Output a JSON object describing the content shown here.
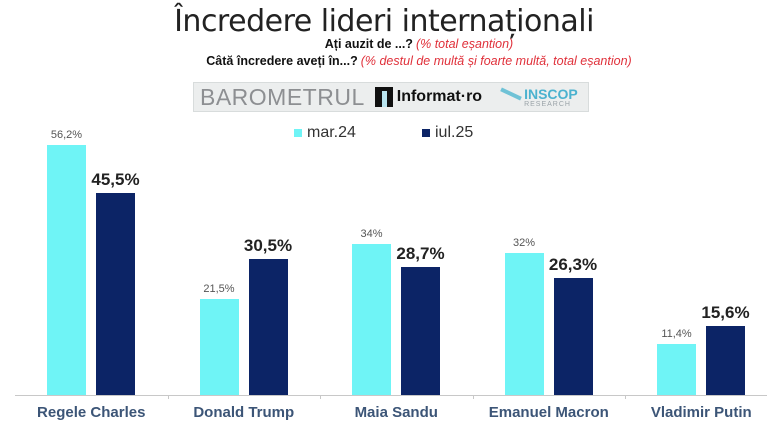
{
  "header": {
    "title": "Încredere lideri internaționali",
    "question1": "Ați auzit de ...?",
    "question1_note": "(% total eșantion)",
    "question2": "Câtă încredere aveți în...?",
    "question2_note": "(% destul de multă și foarte multă, total eșantion)"
  },
  "banner": {
    "barometer": "BAROMETRUL",
    "informat": "Informat·ro",
    "inscop": "INSCOP",
    "inscop_sub": "RESEARCH"
  },
  "colors": {
    "series_a": "#6ff4f6",
    "series_b": "#0c2466",
    "category_text": "#3c5577",
    "note_red": "#e0303a"
  },
  "legend": [
    {
      "label": "mar.24",
      "color": "#6ff4f6"
    },
    {
      "label": "iul.25",
      "color": "#0c2466"
    }
  ],
  "chart_data": {
    "type": "bar",
    "title": "Încredere lideri internaționali",
    "subtitle": "Ați auzit de ...? (% total eșantion) / Câtă încredere aveți în...? (% destul de multă și foarte multă, total eșantion)",
    "categories": [
      "Regele Charles",
      "Donald Trump",
      "Maia Sandu",
      "Emanuel Macron",
      "Vladimir Putin"
    ],
    "series": [
      {
        "name": "mar.24",
        "values": [
          56.2,
          21.5,
          34,
          32,
          11.4
        ],
        "labels": [
          "56,2%",
          "21,5%",
          "34%",
          "32%",
          "11,4%"
        ]
      },
      {
        "name": "iul.25",
        "values": [
          45.5,
          30.5,
          28.7,
          26.3,
          15.6
        ],
        "labels": [
          "45,5%",
          "30,5%",
          "28,7%",
          "26,3%",
          "15,6%"
        ]
      }
    ],
    "xlabel": "",
    "ylabel": "",
    "ylim": [
      0,
      60
    ],
    "grid": false,
    "legend_position": "top"
  }
}
